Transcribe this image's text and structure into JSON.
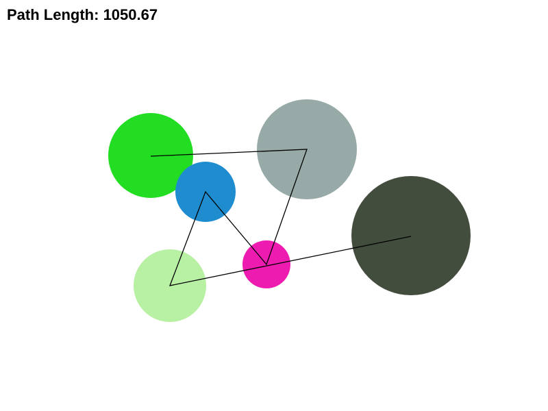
{
  "hud": {
    "label": "Path Length:",
    "value": "1050.67"
  },
  "background": "#ffffff",
  "path_color": "#000000",
  "nodes": [
    {
      "id": "green-node",
      "color": "#22dd22"
    },
    {
      "id": "gray-node",
      "color": "#98aaa7"
    },
    {
      "id": "blue-node",
      "color": "#1e8ccf"
    },
    {
      "id": "magenta-node",
      "color": "#ee1bb1"
    },
    {
      "id": "light-green-node",
      "color": "#b8f0a4"
    },
    {
      "id": "dark-node",
      "color": "#434d3d"
    }
  ],
  "path_order": [
    "green-node",
    "gray-node",
    "magenta-node",
    "blue-node",
    "light-green-node",
    "dark-node"
  ]
}
